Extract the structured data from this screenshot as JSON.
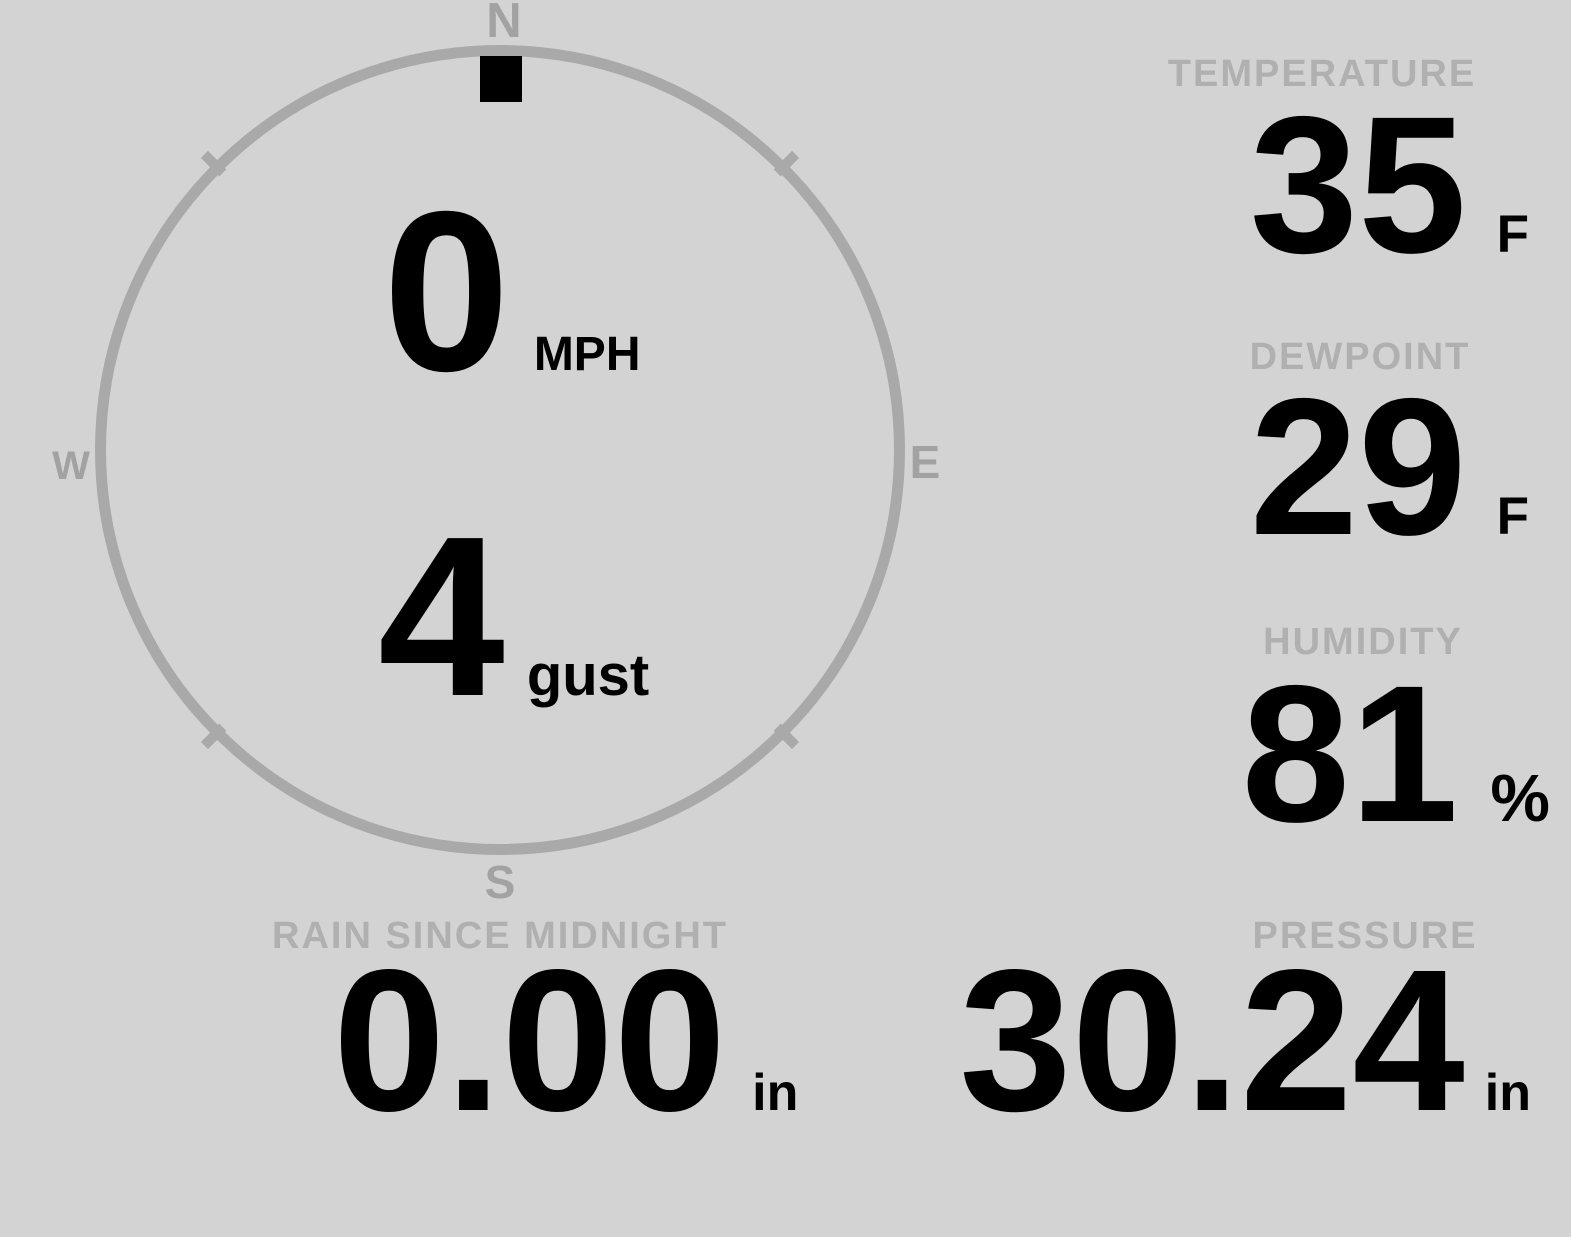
{
  "display": {
    "background_color": "#d3d3d3",
    "value_color": "#000000",
    "label_color": "#b0b0b0",
    "gauge_stroke_color": "#a9a9a9"
  },
  "wind": {
    "direction": "N",
    "speed": {
      "value": "0",
      "unit": "MPH"
    },
    "gust": {
      "value": "4",
      "unit": "gust"
    },
    "compass": {
      "north": "N",
      "east": "E",
      "south": "S",
      "west": "W"
    }
  },
  "metrics": {
    "temperature": {
      "label": "TEMPERATURE",
      "value": "35",
      "unit": "F"
    },
    "dewpoint": {
      "label": "DEWPOINT",
      "value": "29",
      "unit": "F"
    },
    "humidity": {
      "label": "HUMIDITY",
      "value": "81",
      "unit": "%"
    },
    "rain_since_midnight": {
      "label": "RAIN SINCE MIDNIGHT",
      "value": "0.00",
      "unit": "in"
    },
    "pressure": {
      "label": "PRESSURE",
      "value": "30.24",
      "unit": "in"
    }
  }
}
